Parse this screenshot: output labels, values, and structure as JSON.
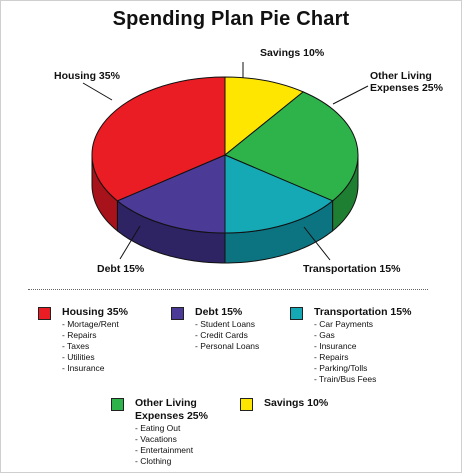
{
  "title": "Spending Plan Pie Chart",
  "chart_data": {
    "type": "pie",
    "title": "Spending Plan Pie Chart",
    "slices": [
      {
        "name": "Savings",
        "value": 10,
        "color": "#ffe600",
        "side_color": "#c9b200",
        "label_lines": [
          "Savings 10%"
        ]
      },
      {
        "name": "Other Living Expenses",
        "value": 25,
        "color": "#2db34a",
        "side_color": "#1e7f33",
        "label_lines": [
          "Other Living",
          "Expenses 25%"
        ]
      },
      {
        "name": "Transportation",
        "value": 15,
        "color": "#15a9b6",
        "side_color": "#0c7480",
        "label_lines": [
          "Transportation 15%"
        ]
      },
      {
        "name": "Debt",
        "value": 15,
        "color": "#4c3a97",
        "side_color": "#2e2363",
        "label_lines": [
          "Debt 15%"
        ]
      },
      {
        "name": "Housing",
        "value": 35,
        "color": "#ea1c24",
        "side_color": "#a8121a",
        "label_lines": [
          "Housing 35%"
        ]
      }
    ]
  },
  "legend": [
    {
      "title_lines": [
        "Housing 35%"
      ],
      "color": "#ea1c24",
      "items": [
        "Mortage/Rent",
        "Repairs",
        "Taxes",
        "Utilities",
        "Insurance"
      ]
    },
    {
      "title_lines": [
        "Debt 15%"
      ],
      "color": "#4c3a97",
      "items": [
        "Student Loans",
        "Credit Cards",
        "Personal Loans"
      ]
    },
    {
      "title_lines": [
        "Transportation 15%"
      ],
      "color": "#15a9b6",
      "items": [
        "Car Payments",
        "Gas",
        "Insurance",
        "Repairs",
        "Parking/Tolls",
        "Train/Bus Fees"
      ]
    },
    {
      "title_lines": [
        "Other Living",
        "Expenses 25%"
      ],
      "color": "#2db34a",
      "items": [
        "Eating Out",
        "Vacations",
        "Entertainment",
        "Clothing"
      ]
    },
    {
      "title_lines": [
        "Savings 10%"
      ],
      "color": "#ffe600",
      "items": []
    }
  ]
}
